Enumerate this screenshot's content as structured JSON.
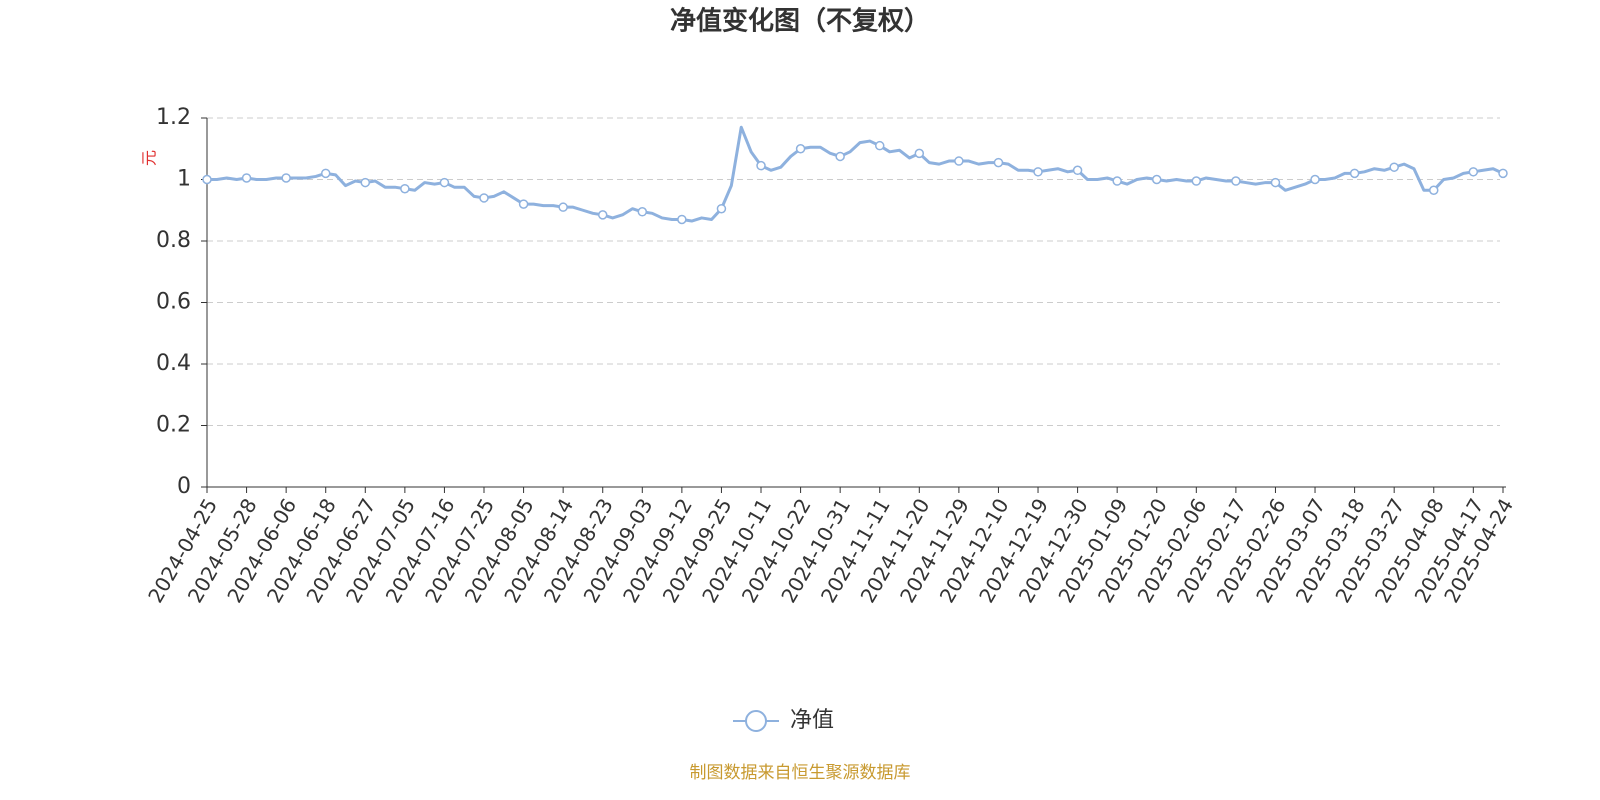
{
  "chart_data": {
    "type": "line",
    "title": "净值变化图（不复权）",
    "y_unit": "元",
    "source": "制图数据来自恒生聚源数据库",
    "categories": [
      "2024-04-25",
      null,
      null,
      null,
      "2024-05-28",
      null,
      null,
      null,
      "2024-06-06",
      null,
      null,
      null,
      "2024-06-18",
      null,
      null,
      null,
      "2024-06-27",
      null,
      null,
      null,
      "2024-07-05",
      null,
      null,
      null,
      "2024-07-16",
      null,
      null,
      null,
      "2024-07-25",
      null,
      null,
      null,
      "2024-08-05",
      null,
      null,
      null,
      "2024-08-14",
      null,
      null,
      null,
      "2024-08-23",
      null,
      null,
      null,
      "2024-09-03",
      null,
      null,
      null,
      "2024-09-12",
      null,
      null,
      null,
      "2024-09-25",
      null,
      null,
      null,
      "2024-10-11",
      null,
      null,
      null,
      "2024-10-22",
      null,
      null,
      null,
      "2024-10-31",
      null,
      null,
      null,
      "2024-11-11",
      null,
      null,
      null,
      "2024-11-20",
      null,
      null,
      null,
      "2024-11-29",
      null,
      null,
      null,
      "2024-12-10",
      null,
      null,
      null,
      "2024-12-19",
      null,
      null,
      null,
      "2024-12-30",
      null,
      null,
      null,
      "2025-01-09",
      null,
      null,
      null,
      "2025-01-20",
      null,
      null,
      null,
      "2025-02-06",
      null,
      null,
      null,
      "2025-02-17",
      null,
      null,
      null,
      "2025-02-26",
      null,
      null,
      null,
      "2025-03-07",
      null,
      null,
      null,
      "2025-03-18",
      null,
      null,
      null,
      "2025-03-27",
      null,
      null,
      null,
      "2025-04-08",
      null,
      null,
      null,
      "2025-04-17",
      null,
      null,
      "2025-04-24"
    ],
    "series": [
      {
        "name": "净值",
        "color": "#8eb1de",
        "values": [
          1.0,
          1.0,
          1.005,
          1.0,
          1.005,
          1.0,
          1.0,
          1.005,
          1.005,
          1.005,
          1.005,
          1.01,
          1.02,
          1.015,
          0.98,
          0.995,
          0.99,
          0.995,
          0.975,
          0.975,
          0.97,
          0.965,
          0.99,
          0.985,
          0.99,
          0.975,
          0.975,
          0.945,
          0.94,
          0.945,
          0.96,
          0.94,
          0.92,
          0.92,
          0.915,
          0.915,
          0.91,
          0.91,
          0.9,
          0.89,
          0.885,
          0.875,
          0.885,
          0.905,
          0.895,
          0.89,
          0.875,
          0.87,
          0.87,
          0.865,
          0.875,
          0.87,
          0.905,
          0.98,
          1.17,
          1.09,
          1.045,
          1.03,
          1.04,
          1.075,
          1.1,
          1.105,
          1.105,
          1.085,
          1.075,
          1.09,
          1.12,
          1.125,
          1.11,
          1.09,
          1.095,
          1.07,
          1.085,
          1.055,
          1.05,
          1.06,
          1.06,
          1.06,
          1.05,
          1.055,
          1.055,
          1.05,
          1.03,
          1.03,
          1.025,
          1.03,
          1.035,
          1.025,
          1.03,
          1.0,
          1.0,
          1.005,
          0.995,
          0.985,
          1.0,
          1.005,
          1.0,
          0.995,
          1.0,
          0.995,
          0.995,
          1.005,
          1.0,
          0.995,
          0.995,
          0.99,
          0.985,
          0.99,
          0.99,
          0.965,
          0.975,
          0.985,
          1.0,
          1.0,
          1.005,
          1.02,
          1.02,
          1.025,
          1.035,
          1.03,
          1.04,
          1.05,
          1.035,
          0.965,
          0.965,
          1.0,
          1.005,
          1.02,
          1.025,
          1.03,
          1.035,
          1.02
        ]
      }
    ],
    "ylim": [
      0,
      1.2
    ],
    "yticks": [
      0,
      0.2,
      0.4,
      0.6,
      0.8,
      1,
      1.2
    ],
    "grid": true,
    "legend": "bottom"
  }
}
